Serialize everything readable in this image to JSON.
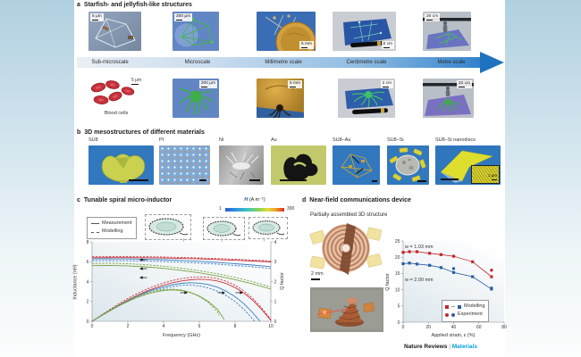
{
  "panel_a": {
    "label": "a",
    "title": "Starfish- and jellyfish-like structures",
    "scale_labels": [
      "Sub-microscale",
      "Microscale",
      "Millimetre scale",
      "Centimetre scale",
      "Metre scale"
    ],
    "row1_scalebars": [
      "5 μm",
      "200 μm",
      "5 mm",
      "2 cm",
      "20 cm"
    ],
    "row2_scalebars": [
      "5 μm",
      "200 μm",
      "5 mm",
      "2 cm",
      "20 cm"
    ],
    "blood_cells_caption": "Blood cells"
  },
  "panel_b": {
    "label": "b",
    "title": "3D mesostructures of different materials",
    "materials": [
      "SU8",
      "PI",
      "Ni",
      "Au",
      "SU8–Au",
      "SU8–Si",
      "SU8–Si nanodiscs"
    ],
    "inset_scalebar": "1 μm"
  },
  "panel_c": {
    "label": "c",
    "title": "Tunable spiral micro-inductor",
    "colorbar": {
      "symbol": "H",
      "units": "(A m⁻¹)",
      "min": "1",
      "max": "300"
    }
  },
  "panel_d": {
    "label": "d",
    "title": "Near-field communications device",
    "subtitle": "Partially assembled 3D structure",
    "scalebar": "2 mm"
  },
  "footer": {
    "brand": "Nature Reviews",
    "divider": "|",
    "journal": "Materials"
  },
  "chart_data": [
    {
      "type": "line",
      "title": "Tunable spiral micro-inductor",
      "xlabel": "Frequency (GHz)",
      "xlim": [
        0,
        10
      ],
      "x_ticks": [
        0,
        2,
        4,
        6,
        8,
        10
      ],
      "ylabel_left": "Inductance (nH)",
      "ylim_left": [
        0,
        8
      ],
      "y_ticks_left": [
        0,
        2,
        4,
        6,
        8
      ],
      "ylabel_right": "Q factor",
      "ylim_right": [
        0,
        4
      ],
      "y_ticks_right": [
        0,
        1,
        2,
        3,
        4
      ],
      "legend": [
        "Measurement",
        "Modelling"
      ],
      "grid": false,
      "axis_arrows_left": [
        {
          "x": 2.7,
          "y": 6.2
        },
        {
          "x": 2.7,
          "y": 5.3
        },
        {
          "x": 2.7,
          "y": 4.4
        }
      ],
      "axis_arrows_right": [
        {
          "x": 5.3,
          "y": 1.44
        },
        {
          "x": 7.4,
          "y": 1.44
        },
        {
          "x": 8.4,
          "y": 1.44
        }
      ],
      "series": [
        {
          "name": "Inductance, measurement, H=300",
          "axis": "left",
          "style": "solid",
          "color": "#c9353c",
          "x": [
            0,
            1,
            2,
            3,
            4,
            5,
            6,
            7,
            8,
            9,
            10
          ],
          "y": [
            6.4,
            6.41,
            6.41,
            6.4,
            6.37,
            6.33,
            6.28,
            6.22,
            6.15,
            6.07,
            5.98
          ]
        },
        {
          "name": "Inductance, modelling, H=300",
          "axis": "left",
          "style": "dashed",
          "color": "#c9353c",
          "x": [
            0,
            1,
            2,
            3,
            4,
            5,
            6,
            7,
            8,
            9,
            10
          ],
          "y": [
            6.5,
            6.51,
            6.51,
            6.5,
            6.47,
            6.43,
            6.38,
            6.32,
            6.25,
            6.17,
            6.08
          ]
        },
        {
          "name": "Inductance, measurement, H mid",
          "axis": "left",
          "style": "solid",
          "color": "#3c7fc0",
          "x": [
            0,
            1,
            2,
            3,
            4,
            5,
            6,
            7,
            8,
            9,
            10
          ],
          "y": [
            6.28,
            6.29,
            6.28,
            6.25,
            6.2,
            6.13,
            6.04,
            5.93,
            5.8,
            5.66,
            5.5
          ]
        },
        {
          "name": "Inductance, modelling, H mid",
          "axis": "left",
          "style": "dashed",
          "color": "#3c7fc0",
          "x": [
            0,
            1,
            2,
            3,
            4,
            5,
            6,
            7,
            8,
            9,
            10
          ],
          "y": [
            6.1,
            6.11,
            6.1,
            6.07,
            6.02,
            5.95,
            5.86,
            5.75,
            5.62,
            5.48,
            5.32
          ]
        },
        {
          "name": "Inductance, measurement, H=1",
          "axis": "left",
          "style": "solid",
          "color": "#79a344",
          "x": [
            0,
            1,
            2,
            3,
            4,
            5,
            6,
            7,
            8,
            9,
            10
          ],
          "y": [
            5.6,
            5.62,
            5.58,
            5.48,
            5.33,
            5.13,
            4.88,
            4.57,
            4.2,
            3.76,
            3.25
          ]
        },
        {
          "name": "Inductance, modelling, H=1",
          "axis": "left",
          "style": "dashed",
          "color": "#79a344",
          "x": [
            0,
            1,
            2,
            3,
            4,
            5,
            6,
            7,
            8,
            9,
            10
          ],
          "y": [
            5.82,
            5.84,
            5.8,
            5.7,
            5.55,
            5.35,
            5.1,
            4.79,
            4.42,
            3.98,
            3.47
          ]
        },
        {
          "name": "Q factor, measurement, H=300",
          "axis": "right",
          "style": "solid",
          "color": "#c9353c",
          "x": [
            0,
            0.5,
            1,
            1.5,
            2,
            2.5,
            3,
            3.5,
            4,
            4.5,
            5,
            5.5,
            6,
            6.5,
            7,
            7.5,
            8,
            8.5,
            9,
            9.5,
            10
          ],
          "y": [
            0,
            0.28,
            0.55,
            0.82,
            1.07,
            1.3,
            1.5,
            1.67,
            1.82,
            1.94,
            2.03,
            2.09,
            2.12,
            2.1,
            2.03,
            1.9,
            1.7,
            1.42,
            1.05,
            0.58,
            0.05
          ]
        },
        {
          "name": "Q factor, modelling, H=300",
          "axis": "right",
          "style": "dashed",
          "color": "#c9353c",
          "x": [
            0,
            0.5,
            1,
            1.5,
            2,
            2.5,
            3,
            3.5,
            4,
            4.5,
            5,
            5.5,
            6,
            6.5,
            7,
            7.5,
            8,
            8.5,
            9,
            9.5,
            10
          ],
          "y": [
            0,
            0.3,
            0.6,
            0.88,
            1.15,
            1.39,
            1.6,
            1.78,
            1.93,
            2.06,
            2.15,
            2.21,
            2.24,
            2.22,
            2.15,
            2.02,
            1.82,
            1.53,
            1.15,
            0.65,
            0.1
          ]
        },
        {
          "name": "Q factor, measurement, H mid",
          "axis": "right",
          "style": "solid",
          "color": "#3c7fc0",
          "x": [
            0,
            0.5,
            1,
            1.5,
            2,
            2.5,
            3,
            3.5,
            4,
            4.5,
            5,
            5.5,
            6,
            6.5,
            7,
            7.5,
            8,
            8.5,
            9,
            9.4
          ],
          "y": [
            0,
            0.28,
            0.55,
            0.8,
            1.04,
            1.26,
            1.45,
            1.61,
            1.74,
            1.84,
            1.91,
            1.94,
            1.92,
            1.85,
            1.72,
            1.52,
            1.24,
            0.88,
            0.42,
            0
          ]
        },
        {
          "name": "Q factor, modelling, H mid",
          "axis": "right",
          "style": "dashed",
          "color": "#3c7fc0",
          "x": [
            0,
            0.5,
            1,
            1.5,
            2,
            2.5,
            3,
            3.5,
            4,
            4.5,
            5,
            5.5,
            6,
            6.5,
            7,
            7.5,
            8,
            8.5,
            9.1
          ],
          "y": [
            0,
            0.27,
            0.53,
            0.77,
            1.0,
            1.21,
            1.39,
            1.54,
            1.66,
            1.75,
            1.81,
            1.83,
            1.78,
            1.68,
            1.52,
            1.3,
            1.0,
            0.6,
            0
          ]
        },
        {
          "name": "Q factor, measurement, H=1",
          "axis": "right",
          "style": "solid",
          "color": "#79a344",
          "x": [
            0,
            0.5,
            1,
            1.5,
            2,
            2.5,
            3,
            3.5,
            4,
            4.5,
            5,
            5.5,
            6,
            6.5,
            7,
            7.4
          ],
          "y": [
            0,
            0.27,
            0.53,
            0.78,
            1.0,
            1.19,
            1.35,
            1.47,
            1.55,
            1.58,
            1.55,
            1.45,
            1.27,
            1.0,
            0.62,
            0.08
          ]
        },
        {
          "name": "Q factor, modelling, H=1",
          "axis": "right",
          "style": "dashed",
          "color": "#79a344",
          "x": [
            0,
            0.5,
            1,
            1.5,
            2,
            2.5,
            3,
            3.5,
            4,
            4.5,
            5,
            5.5,
            6,
            6.5,
            7,
            7.1
          ],
          "y": [
            0,
            0.28,
            0.56,
            0.82,
            1.05,
            1.25,
            1.41,
            1.53,
            1.6,
            1.62,
            1.58,
            1.46,
            1.25,
            0.95,
            0.5,
            0.3
          ]
        }
      ]
    },
    {
      "type": "scatter",
      "xlabel": "Applied strain, ε (%)",
      "xlim": [
        0,
        80
      ],
      "x_ticks": [
        0,
        20,
        40,
        60,
        80
      ],
      "ylabel": "Q factor",
      "ylim": [
        0,
        25
      ],
      "y_ticks": [
        0,
        5,
        10,
        15,
        20,
        25
      ],
      "legend": [
        "Modelling",
        "Experiment"
      ],
      "annotations": [
        "w = 1.03 mm",
        "w = 2.00 mm"
      ],
      "series": [
        {
          "name": "w = 1.03 mm, modelling",
          "color": "#c1272d",
          "marker": "square",
          "line": true,
          "x": [
            0,
            5,
            11,
            21,
            30,
            40,
            55,
            70
          ],
          "y": [
            21.5,
            21.7,
            21.7,
            21.2,
            20.8,
            20.3,
            18.6,
            14.0
          ]
        },
        {
          "name": "w = 2.00 mm, modelling",
          "color": "#2b5f9e",
          "marker": "square",
          "line": true,
          "x": [
            0,
            5,
            11,
            21,
            30,
            40,
            55,
            70
          ],
          "y": [
            18.0,
            18.2,
            17.9,
            17.5,
            16.8,
            15.3,
            14.0,
            10.2
          ]
        },
        {
          "name": "w = 1.03 mm, experiment",
          "color": "#c1272d",
          "marker": "circle",
          "line": false,
          "x": [
            70
          ],
          "y": [
            16.0
          ]
        },
        {
          "name": "w = 2.00 mm, experiment",
          "color": "#2b5f9e",
          "marker": "circle",
          "line": false,
          "x": [
            40,
            70
          ],
          "y": [
            16.5,
            10.5
          ]
        }
      ]
    }
  ]
}
